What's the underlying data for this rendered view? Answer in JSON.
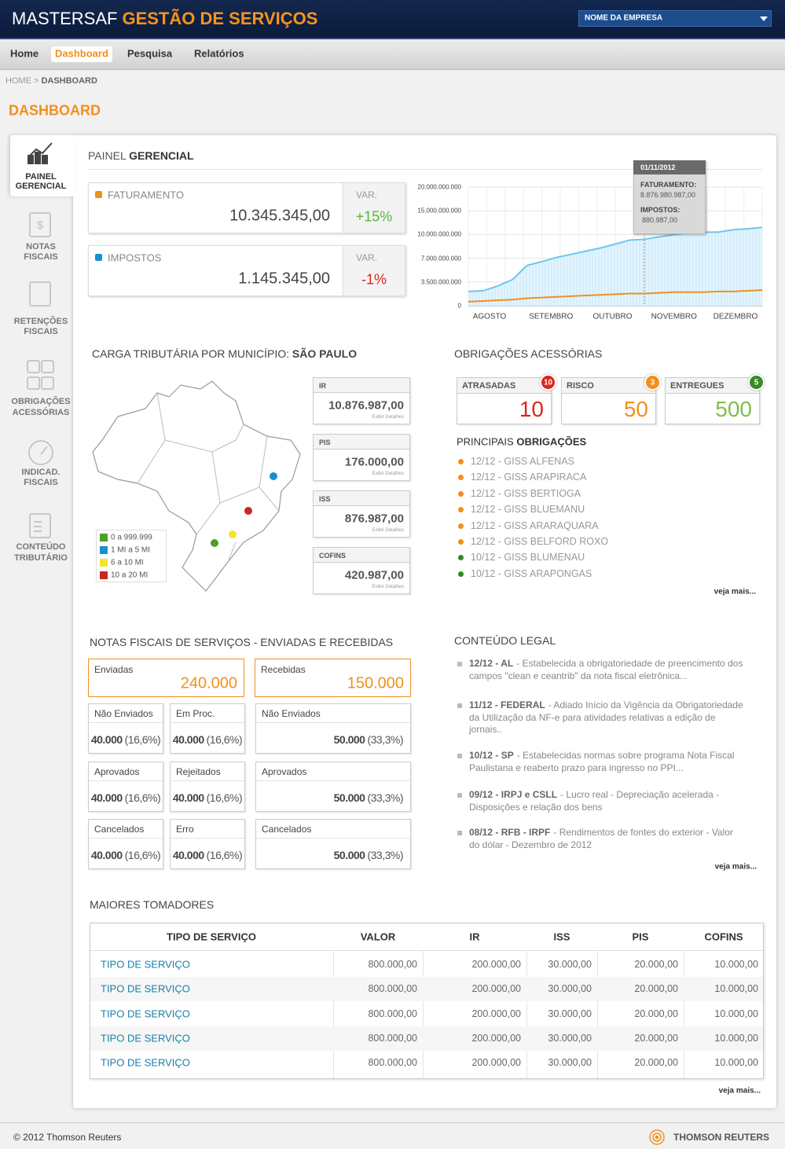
{
  "header": {
    "brand": "MASTERSAF",
    "product": "GESTÃO DE SERVIÇOS",
    "company": "NOME DA EMPRESA"
  },
  "nav": [
    "Home",
    "Dashboard",
    "Pesquisa",
    "Relatórios"
  ],
  "breadcrumb": {
    "home": "HOME",
    "sep": ">",
    "current": "DASHBOARD"
  },
  "page_title": "DASHBOARD",
  "sidebar": [
    [
      "PAINEL",
      "GERENCIAL"
    ],
    [
      "NOTAS",
      "FISCAIS"
    ],
    [
      "RETENÇÕES",
      "FISCAIS"
    ],
    [
      "OBRIGAÇÕES",
      "ACESSÓRIAS"
    ],
    [
      "INDICAD.",
      "FISCAIS"
    ],
    [
      "CONTEÚDO",
      "TRIBUTÁRIO"
    ]
  ],
  "painel": {
    "title": [
      "PAINEL ",
      "GERENCIAL"
    ],
    "kpis": [
      {
        "label": "FATURAMENTO",
        "color": "#f0901e",
        "value": "10.345.345,00",
        "var_label": "VAR.",
        "var": "+15%",
        "var_color": "#5cb33e"
      },
      {
        "label": "IMPOSTOS",
        "color": "#1a8fcf",
        "value": "1.145.345,00",
        "var_label": "VAR.",
        "var": "-1%",
        "var_color": "#d9261c"
      }
    ],
    "chart": {
      "type": "line",
      "categories": [
        "AGOSTO",
        "SETEMBRO",
        "OUTUBRO",
        "NOVEMBRO",
        "DEZEMBRO"
      ],
      "yticks": [
        0,
        {
          "value": 3500000000,
          "label": "3.500.000.000"
        },
        {
          "value": 7000000000,
          "label": "7.000.000.000"
        },
        {
          "value": 10000000000,
          "label": "10.000.000.000"
        },
        {
          "value": 15000000000,
          "label": "15.000.000.000"
        },
        {
          "value": 20000000000,
          "label": "20.000.000.000"
        }
      ],
      "grid": true,
      "series": [
        {
          "name": "FATURAMENTO",
          "color": "#6ec6ee",
          "values": [
            2100000000,
            2200000000,
            2900000000,
            3850000000,
            5950000000,
            6500000000,
            7100000000,
            7500000000,
            7900000000,
            8300000000,
            8800000000,
            9300000000,
            9400000000,
            9700000000,
            10000000000,
            10300000000,
            10500000000,
            10500000000,
            11000000000,
            11200000000,
            11500000000
          ]
        },
        {
          "name": "IMPOSTOS",
          "color": "#f0901e",
          "values": [
            600000000,
            700000000,
            800000000,
            900000000,
            1100000000,
            1200000000,
            1300000000,
            1400000000,
            1500000000,
            1600000000,
            1700000000,
            1800000000,
            1800000000,
            1900000000,
            2000000000,
            2000000000,
            2000000000,
            2100000000,
            2100000000,
            2200000000,
            2300000000
          ]
        }
      ],
      "tooltip": {
        "date": "01/11/2012",
        "label1": "FATURAMENTO:",
        "value1": "8.876.980.987,00",
        "label2": "IMPOSTOS:",
        "value2": "880.987,00"
      }
    }
  },
  "carga": {
    "title": [
      "CARGA TRIBUTÁRIA POR MUNICÍPIO: ",
      "SÃO PAULO"
    ],
    "legend": [
      {
        "label": "0 a 999.999",
        "color": "#4e9e2a"
      },
      {
        "label": "1 MI a 5 MI",
        "color": "#1a8fcf"
      },
      {
        "label": "6 a 10 MI",
        "color": "#f5e52a"
      },
      {
        "label": "10 a 20 MI",
        "color": "#c8291e"
      }
    ],
    "taxes": [
      {
        "label": "IR",
        "value": "10.876.987,00",
        "link": "Exibir Detalhes"
      },
      {
        "label": "PIS",
        "value": "176.000,00",
        "link": "Exibir Detalhes"
      },
      {
        "label": "ISS",
        "value": "876.987,00",
        "link": "Exibir Detalhes"
      },
      {
        "label": "COFINS",
        "value": "420.987,00",
        "link": "Exibir Detalhes"
      }
    ]
  },
  "obrigacoes": {
    "title": "OBRIGAÇÕES ACESSÓRIAS",
    "boxes": [
      {
        "label": "ATRASADAS",
        "value": "10",
        "badge": "10",
        "color": "#d9261c"
      },
      {
        "label": "RISCO",
        "value": "50",
        "badge": "3",
        "color": "#f0901e"
      },
      {
        "label": "ENTREGUES",
        "value": "500",
        "badge": "5",
        "color": "#7fbf4d"
      }
    ],
    "list_title": [
      "PRINCIPAIS ",
      "OBRIGAÇÕES"
    ],
    "items": [
      {
        "text": "12/12 - GISS ALFENAS",
        "color": "#f0901e"
      },
      {
        "text": "12/12 - GISS ARAPIRACA",
        "color": "#f0901e"
      },
      {
        "text": "12/12 - GISS BERTIOGA",
        "color": "#f0901e"
      },
      {
        "text": "12/12 - GISS BLUEMANU",
        "color": "#f0901e"
      },
      {
        "text": "12/12 - GISS ARARAQUARA",
        "color": "#f0901e"
      },
      {
        "text": "12/12 - GISS BELFORD ROXO",
        "color": "#f0901e"
      },
      {
        "text": "10/12 - GISS BLUMENAU",
        "color": "#2e8b1f"
      },
      {
        "text": "10/12 - GISS ARAPONGAS",
        "color": "#2e8b1f"
      }
    ],
    "more": "veja mais..."
  },
  "notas": {
    "title": "NOTAS FISCAIS DE SERVIÇOS - ENVIADAS E RECEBIDAS",
    "totals": [
      {
        "label": "Enviadas",
        "value": "240.000"
      },
      {
        "label": "Recebidas",
        "value": "150.000"
      }
    ],
    "cells": [
      {
        "label": "Não Enviados",
        "value": "40.000",
        "pct": "(16,6%)"
      },
      {
        "label": "Em Proc.",
        "value": "40.000",
        "pct": "(16,6%)"
      },
      {
        "label": "Não Enviados",
        "value": "50.000",
        "pct": "(33,3%)"
      },
      {
        "label": "Aprovados",
        "value": "40.000",
        "pct": "(16,6%)"
      },
      {
        "label": "Rejeitados",
        "value": "40.000",
        "pct": "(16,6%)"
      },
      {
        "label": "Aprovados",
        "value": "50.000",
        "pct": "(33,3%)"
      },
      {
        "label": "Cancelados",
        "value": "40.000",
        "pct": "(16,6%)"
      },
      {
        "label": "Erro",
        "value": "40.000",
        "pct": "(16,6%)"
      },
      {
        "label": "Cancelados",
        "value": "50.000",
        "pct": "(33,3%)"
      }
    ]
  },
  "legal": {
    "title": "CONTEÚDO LEGAL",
    "items": [
      {
        "head": "12/12 - AL",
        "text": "- Estabelecida a obrigatoriedade de preencimento dos campos \"clean e ceantrib\" da nota fiscal eletrônica..."
      },
      {
        "head": "11/12 - FEDERAL",
        "text": "- Adiado Início da Vigência da Obrigatoriedade da Utilização da NF-e para atividades relativas a edição de jornais.."
      },
      {
        "head": "10/12 - SP",
        "text": "- Estabelecidas normas sobre programa Nota Fiscal Paulistana e reaberto prazo para ingresso no PPI..."
      },
      {
        "head": "09/12 - IRPJ e CSLL",
        "text": "- Lucro real - Depreciação acelerada - Disposições e relação dos bens"
      },
      {
        "head": "08/12 - RFB - IRPF",
        "text": "- Rendimentos de fontes do exterior - Valor do dólar - Dezembro de 2012"
      }
    ],
    "more": "veja mais..."
  },
  "tomadores": {
    "title": "MAIORES TOMADORES",
    "headers": [
      "TIPO DE SERVIÇO",
      "VALOR",
      "IR",
      "ISS",
      "PIS",
      "COFINS"
    ],
    "rows": [
      [
        "TIPO DE SERVIÇO",
        "800.000,00",
        "200.000,00",
        "30.000,00",
        "20.000,00",
        "10.000,00"
      ],
      [
        "TIPO DE SERVIÇO",
        "800.000,00",
        "200.000,00",
        "30.000,00",
        "20.000,00",
        "10.000,00"
      ],
      [
        "TIPO DE SERVIÇO",
        "800.000,00",
        "200.000,00",
        "30.000,00",
        "20.000,00",
        "10.000,00"
      ],
      [
        "TIPO DE SERVIÇO",
        "800.000,00",
        "200.000,00",
        "30.000,00",
        "20.000,00",
        "10.000,00"
      ],
      [
        "TIPO DE SERVIÇO",
        "800.000,00",
        "200.000,00",
        "30.000,00",
        "20.000,00",
        "10.000,00"
      ]
    ],
    "more": "veja mais..."
  },
  "footer": {
    "copyright": "© 2012 Thomson Reuters",
    "logo": "THOMSON REUTERS"
  }
}
